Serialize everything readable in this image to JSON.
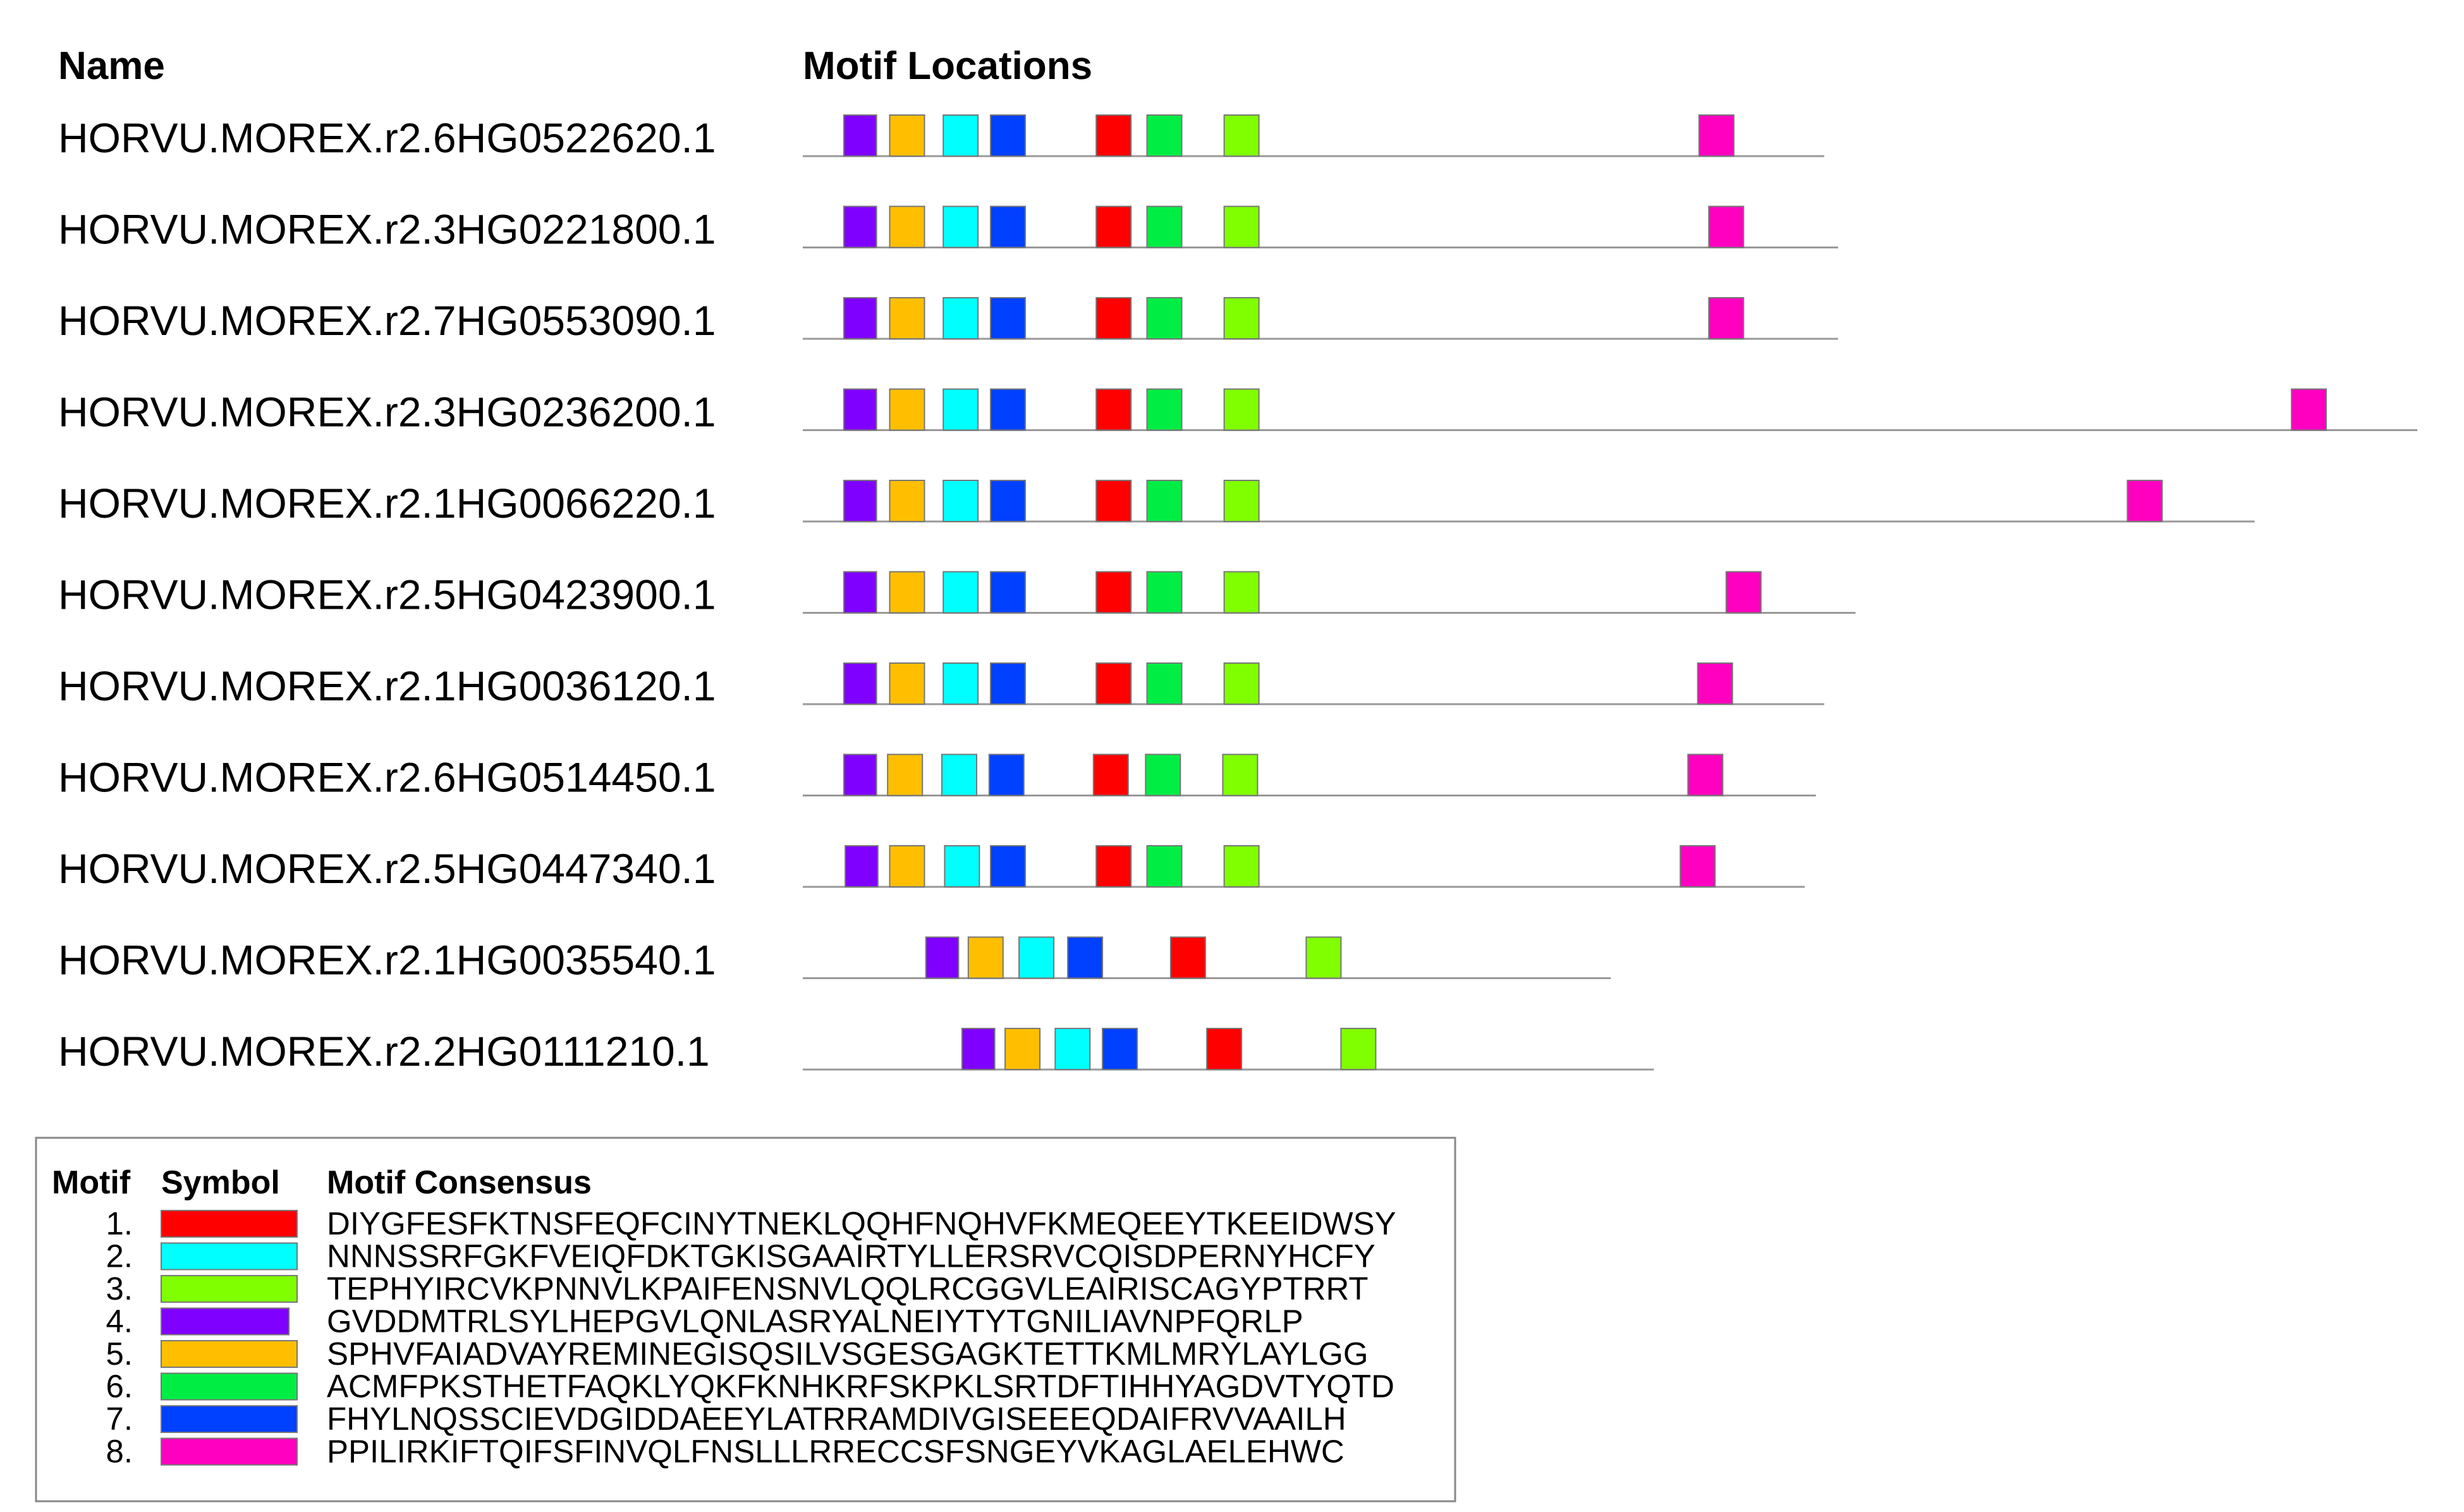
{
  "header": {
    "name": "Name",
    "locations": "Motif Locations"
  },
  "sequences": [
    {
      "name": "HORVU.MOREX.r2.6HG0522620.1",
      "length": 1469,
      "sites": [
        {
          "motif": 3,
          "start": 59
        },
        {
          "motif": 4,
          "start": 125
        },
        {
          "motif": 1,
          "start": 202
        },
        {
          "motif": 6,
          "start": 270
        },
        {
          "motif": 0,
          "start": 422
        },
        {
          "motif": 5,
          "start": 495
        },
        {
          "motif": 2,
          "start": 606
        },
        {
          "motif": 7,
          "start": 1289
        }
      ]
    },
    {
      "name": "HORVU.MOREX.r2.3HG0221800.1",
      "length": 1489,
      "sites": [
        {
          "motif": 3,
          "start": 59
        },
        {
          "motif": 4,
          "start": 125
        },
        {
          "motif": 1,
          "start": 202
        },
        {
          "motif": 6,
          "start": 270
        },
        {
          "motif": 0,
          "start": 422
        },
        {
          "motif": 5,
          "start": 495
        },
        {
          "motif": 2,
          "start": 606
        },
        {
          "motif": 7,
          "start": 1303
        }
      ]
    },
    {
      "name": "HORVU.MOREX.r2.7HG0553090.1",
      "length": 1489,
      "sites": [
        {
          "motif": 3,
          "start": 59
        },
        {
          "motif": 4,
          "start": 125
        },
        {
          "motif": 1,
          "start": 202
        },
        {
          "motif": 6,
          "start": 270
        },
        {
          "motif": 0,
          "start": 422
        },
        {
          "motif": 5,
          "start": 495
        },
        {
          "motif": 2,
          "start": 606
        },
        {
          "motif": 7,
          "start": 1303
        }
      ]
    },
    {
      "name": "HORVU.MOREX.r2.3HG0236200.1",
      "length": 2322,
      "sites": [
        {
          "motif": 3,
          "start": 59
        },
        {
          "motif": 4,
          "start": 125
        },
        {
          "motif": 1,
          "start": 202
        },
        {
          "motif": 6,
          "start": 270
        },
        {
          "motif": 0,
          "start": 422
        },
        {
          "motif": 5,
          "start": 495
        },
        {
          "motif": 2,
          "start": 606
        },
        {
          "motif": 7,
          "start": 2141
        }
      ]
    },
    {
      "name": "HORVU.MOREX.r2.1HG0066220.1",
      "length": 2088,
      "sites": [
        {
          "motif": 3,
          "start": 59
        },
        {
          "motif": 4,
          "start": 125
        },
        {
          "motif": 1,
          "start": 202
        },
        {
          "motif": 6,
          "start": 270
        },
        {
          "motif": 0,
          "start": 422
        },
        {
          "motif": 5,
          "start": 495
        },
        {
          "motif": 2,
          "start": 606
        },
        {
          "motif": 7,
          "start": 1905
        }
      ]
    },
    {
      "name": "HORVU.MOREX.r2.5HG0423900.1",
      "length": 1514,
      "sites": [
        {
          "motif": 3,
          "start": 59
        },
        {
          "motif": 4,
          "start": 125
        },
        {
          "motif": 1,
          "start": 202
        },
        {
          "motif": 6,
          "start": 270
        },
        {
          "motif": 0,
          "start": 422
        },
        {
          "motif": 5,
          "start": 495
        },
        {
          "motif": 2,
          "start": 606
        },
        {
          "motif": 7,
          "start": 1328
        }
      ]
    },
    {
      "name": "HORVU.MOREX.r2.1HG0036120.1",
      "length": 1469,
      "sites": [
        {
          "motif": 3,
          "start": 59
        },
        {
          "motif": 4,
          "start": 125
        },
        {
          "motif": 1,
          "start": 202
        },
        {
          "motif": 6,
          "start": 270
        },
        {
          "motif": 0,
          "start": 422
        },
        {
          "motif": 5,
          "start": 495
        },
        {
          "motif": 2,
          "start": 606
        },
        {
          "motif": 7,
          "start": 1287
        }
      ]
    },
    {
      "name": "HORVU.MOREX.r2.6HG0514450.1",
      "length": 1457,
      "sites": [
        {
          "motif": 3,
          "start": 59
        },
        {
          "motif": 4,
          "start": 122
        },
        {
          "motif": 1,
          "start": 200
        },
        {
          "motif": 6,
          "start": 268
        },
        {
          "motif": 0,
          "start": 418
        },
        {
          "motif": 5,
          "start": 493
        },
        {
          "motif": 2,
          "start": 604
        },
        {
          "motif": 7,
          "start": 1273
        }
      ]
    },
    {
      "name": "HORVU.MOREX.r2.5HG0447340.1",
      "length": 1441,
      "sites": [
        {
          "motif": 3,
          "start": 61
        },
        {
          "motif": 4,
          "start": 125
        },
        {
          "motif": 1,
          "start": 204
        },
        {
          "motif": 6,
          "start": 270
        },
        {
          "motif": 0,
          "start": 422
        },
        {
          "motif": 5,
          "start": 495
        },
        {
          "motif": 2,
          "start": 606
        },
        {
          "motif": 7,
          "start": 1262
        }
      ]
    },
    {
      "name": "HORVU.MOREX.r2.1HG0035540.1",
      "length": 1162,
      "sites": [
        {
          "motif": 3,
          "start": 177
        },
        {
          "motif": 4,
          "start": 238
        },
        {
          "motif": 1,
          "start": 311
        },
        {
          "motif": 6,
          "start": 381
        },
        {
          "motif": 0,
          "start": 529
        },
        {
          "motif": 2,
          "start": 724
        }
      ]
    },
    {
      "name": "HORVU.MOREX.r2.2HG0111210.1",
      "length": 1224,
      "sites": [
        {
          "motif": 3,
          "start": 229
        },
        {
          "motif": 4,
          "start": 291
        },
        {
          "motif": 1,
          "start": 363
        },
        {
          "motif": 6,
          "start": 431
        },
        {
          "motif": 0,
          "start": 581
        },
        {
          "motif": 2,
          "start": 774
        }
      ]
    }
  ],
  "legend": {
    "motif": "Motif",
    "symbol": "Symbol",
    "consensus": "Motif Consensus",
    "motifs": [
      {
        "label": "1.",
        "color": "#ff0000",
        "consensus": "DIYGFESFKTNSFEQFCINYTNEKLQQHFNQHVFKMEQEEYTKEEIDWSY"
      },
      {
        "label": "2.",
        "color": "#00ffff",
        "consensus": "NNNSSRFGKFVEIQFDKTGKISGAAIRTYLLERSRVCQISDPERNYHCFY"
      },
      {
        "label": "3.",
        "color": "#80ff00",
        "consensus": "TEPHYIRCVKPNNVLKPAIFENSNVLQQLRCGGVLEAIRISCAGYPTRRT"
      },
      {
        "label": "4.",
        "color": "#8000ff",
        "consensus": "GVDDMTRLSYLHEPGVLQNLASRYALNEIYTYTGNILIAVNPFQRLP"
      },
      {
        "label": "5.",
        "color": "#ffbf00",
        "consensus": "SPHVFAIADVAYREMINEGISQSILVSGESGAGKTETTKMLMRYLAYLGG"
      },
      {
        "label": "6.",
        "color": "#00ee44",
        "consensus": "ACMFPKSTHETFAQKLYQKFKNHKRFSKPKLSRTDFTIHHYAGDVTYQTD"
      },
      {
        "label": "7.",
        "color": "#0040ff",
        "consensus": "FHYLNQSSCIEVDGIDDAEEYLATRRAMDIVGISEEEQDAIFRVVAAILH"
      },
      {
        "label": "8.",
        "color": "#ff00c0",
        "consensus": "PPILIRKIFTQIFSFINVQLFNSLLLRRECCSFSNGEYVKAGLAELEHWC"
      }
    ]
  }
}
